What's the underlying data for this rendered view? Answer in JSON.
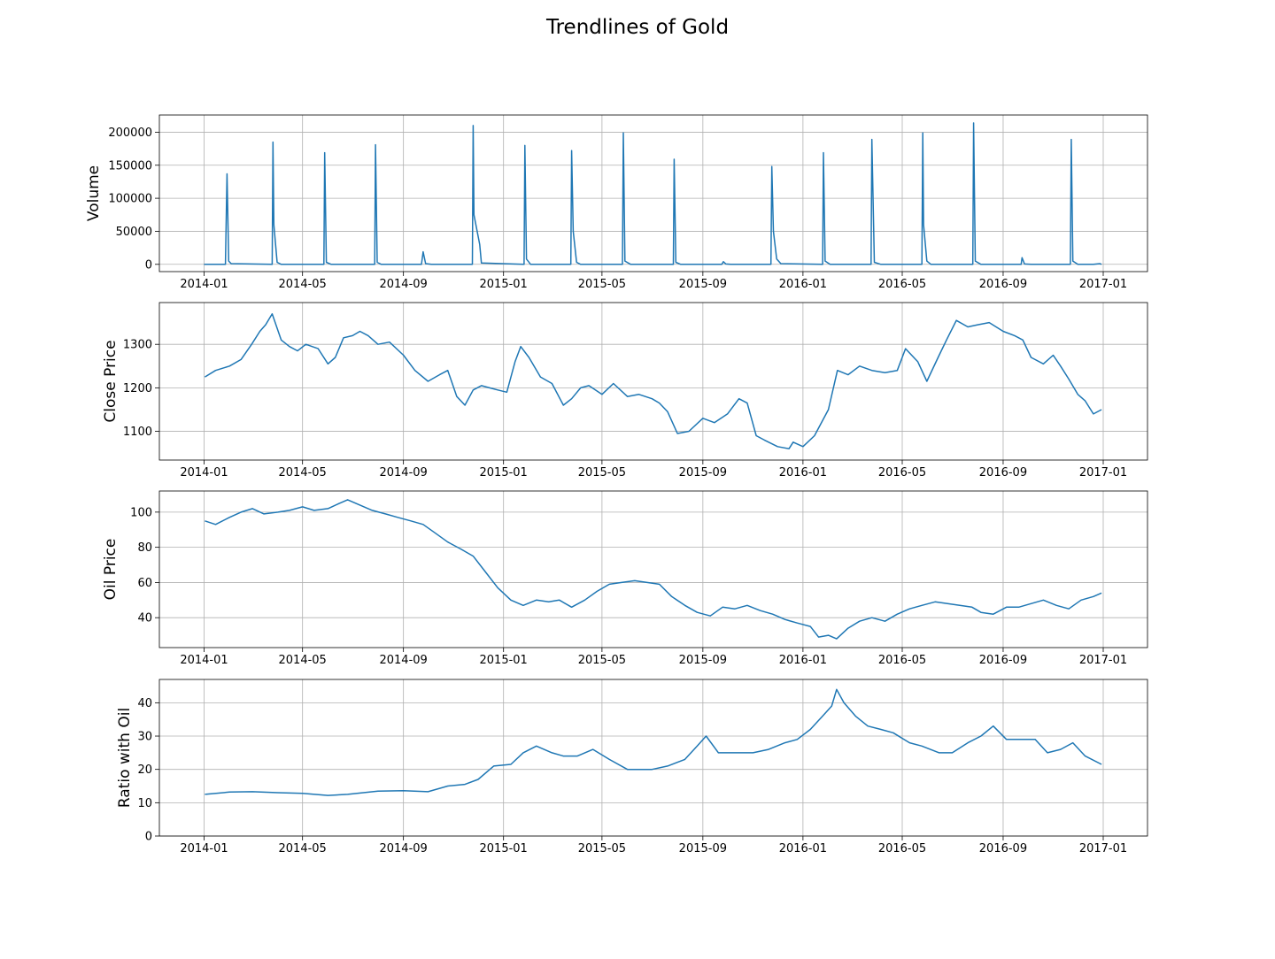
{
  "title": "Trendlines of Gold",
  "colors": {
    "line": "#1f77b4",
    "grid": "#b0b0b0",
    "axes": "#000000"
  },
  "chart_data": [
    {
      "type": "line",
      "ylabel": "Volume",
      "xlabel": "",
      "grid": true,
      "x_ticks": [
        "2014-01",
        "2014-05",
        "2014-09",
        "2015-01",
        "2015-05",
        "2015-09",
        "2016-01",
        "2016-05",
        "2016-09",
        "2017-01"
      ],
      "y_ticks": [
        0,
        50000,
        100000,
        150000,
        200000
      ],
      "ylim": [
        -11000,
        226000
      ],
      "series": [
        {
          "x": [
            "2014-01-01",
            "2014-01-27",
            "2014-01-29",
            "2014-01-31",
            "2014-02-03",
            "2014-03-25",
            "2014-03-26",
            "2014-03-27",
            "2014-03-31",
            "2014-04-05",
            "2014-05-27",
            "2014-05-28",
            "2014-05-30",
            "2014-06-05",
            "2014-07-28",
            "2014-07-29",
            "2014-07-31",
            "2014-08-05",
            "2014-09-23",
            "2014-09-25",
            "2014-09-28",
            "2014-10-05",
            "2014-11-24",
            "2014-11-25",
            "2014-11-26",
            "2014-12-03",
            "2014-12-05",
            "2015-01-26",
            "2015-01-27",
            "2015-01-29",
            "2015-02-03",
            "2015-03-24",
            "2015-03-25",
            "2015-03-27",
            "2015-03-31",
            "2015-04-05",
            "2015-05-26",
            "2015-05-27",
            "2015-05-29",
            "2015-06-05",
            "2015-07-27",
            "2015-07-28",
            "2015-07-30",
            "2015-08-05",
            "2015-09-24",
            "2015-09-26",
            "2015-09-29",
            "2015-10-05",
            "2015-11-23",
            "2015-11-24",
            "2015-11-26",
            "2015-11-30",
            "2015-12-05",
            "2016-01-25",
            "2016-01-26",
            "2016-01-28",
            "2016-02-03",
            "2016-03-24",
            "2016-03-25",
            "2016-03-28",
            "2016-04-05",
            "2016-05-25",
            "2016-05-26",
            "2016-05-27",
            "2016-05-31",
            "2016-06-05",
            "2016-07-26",
            "2016-07-27",
            "2016-07-29",
            "2016-08-05",
            "2016-09-23",
            "2016-09-24",
            "2016-09-27",
            "2016-10-05",
            "2016-11-22",
            "2016-11-23",
            "2016-11-25",
            "2016-12-01",
            "2016-12-20",
            "2016-12-28",
            "2016-12-30"
          ],
          "values": [
            0,
            0,
            137000,
            5000,
            1000,
            0,
            185000,
            60000,
            3000,
            0,
            0,
            169000,
            3000,
            0,
            0,
            181000,
            3000,
            0,
            0,
            19000,
            1000,
            0,
            0,
            210000,
            75000,
            30000,
            2000,
            0,
            180000,
            8000,
            0,
            0,
            172000,
            50000,
            3000,
            0,
            0,
            199000,
            5000,
            0,
            0,
            159000,
            3000,
            0,
            0,
            4000,
            500,
            0,
            0,
            148000,
            50000,
            8000,
            1000,
            0,
            169000,
            5000,
            0,
            0,
            189000,
            3000,
            0,
            0,
            199000,
            60000,
            5000,
            0,
            0,
            214000,
            5000,
            0,
            0,
            10000,
            500,
            0,
            0,
            189000,
            5000,
            0,
            0,
            1000,
            0
          ]
        }
      ]
    },
    {
      "type": "line",
      "ylabel": "Close Price",
      "xlabel": "",
      "grid": true,
      "x_ticks": [
        "2014-01",
        "2014-05",
        "2014-09",
        "2015-01",
        "2015-05",
        "2015-09",
        "2016-01",
        "2016-05",
        "2016-09",
        "2017-01"
      ],
      "y_ticks": [
        1100,
        1200,
        1300
      ],
      "ylim": [
        1034,
        1396
      ],
      "series": [
        {
          "x": [
            "2014-01-02",
            "2014-01-15",
            "2014-02-01",
            "2014-02-15",
            "2014-02-28",
            "2014-03-10",
            "2014-03-17",
            "2014-03-25",
            "2014-04-05",
            "2014-04-15",
            "2014-04-25",
            "2014-05-05",
            "2014-05-20",
            "2014-06-01",
            "2014-06-10",
            "2014-06-20",
            "2014-07-01",
            "2014-07-10",
            "2014-07-20",
            "2014-08-01",
            "2014-08-15",
            "2014-09-01",
            "2014-09-15",
            "2014-10-01",
            "2014-10-15",
            "2014-10-25",
            "2014-11-05",
            "2014-11-15",
            "2014-11-25",
            "2014-12-05",
            "2014-12-15",
            "2014-12-25",
            "2015-01-05",
            "2015-01-15",
            "2015-01-22",
            "2015-02-01",
            "2015-02-15",
            "2015-03-01",
            "2015-03-15",
            "2015-03-25",
            "2015-04-05",
            "2015-04-15",
            "2015-05-01",
            "2015-05-15",
            "2015-06-01",
            "2015-06-15",
            "2015-07-01",
            "2015-07-10",
            "2015-07-20",
            "2015-08-01",
            "2015-08-15",
            "2015-09-01",
            "2015-09-15",
            "2015-10-01",
            "2015-10-15",
            "2015-10-25",
            "2015-11-05",
            "2015-11-15",
            "2015-12-01",
            "2015-12-15",
            "2015-12-20",
            "2016-01-01",
            "2016-01-15",
            "2016-02-01",
            "2016-02-12",
            "2016-02-25",
            "2016-03-10",
            "2016-03-25",
            "2016-04-10",
            "2016-04-25",
            "2016-05-05",
            "2016-05-20",
            "2016-05-31",
            "2016-06-15",
            "2016-06-24",
            "2016-07-06",
            "2016-07-20",
            "2016-08-01",
            "2016-08-15",
            "2016-09-01",
            "2016-09-15",
            "2016-09-25",
            "2016-10-05",
            "2016-10-20",
            "2016-11-01",
            "2016-11-10",
            "2016-11-20",
            "2016-12-01",
            "2016-12-10",
            "2016-12-20",
            "2016-12-30"
          ],
          "values": [
            1225,
            1240,
            1250,
            1265,
            1300,
            1330,
            1345,
            1370,
            1310,
            1295,
            1285,
            1300,
            1290,
            1255,
            1270,
            1315,
            1320,
            1330,
            1320,
            1300,
            1305,
            1275,
            1240,
            1215,
            1230,
            1240,
            1180,
            1160,
            1195,
            1205,
            1200,
            1195,
            1190,
            1260,
            1295,
            1270,
            1225,
            1210,
            1160,
            1175,
            1200,
            1205,
            1185,
            1210,
            1180,
            1185,
            1175,
            1165,
            1145,
            1095,
            1100,
            1130,
            1120,
            1140,
            1175,
            1165,
            1090,
            1080,
            1065,
            1060,
            1075,
            1065,
            1090,
            1150,
            1240,
            1230,
            1250,
            1240,
            1235,
            1240,
            1290,
            1260,
            1215,
            1275,
            1310,
            1355,
            1340,
            1345,
            1350,
            1330,
            1320,
            1310,
            1270,
            1255,
            1275,
            1250,
            1220,
            1185,
            1170,
            1140,
            1150
          ]
        }
      ]
    },
    {
      "type": "line",
      "ylabel": "Oil Price",
      "xlabel": "",
      "grid": true,
      "x_ticks": [
        "2014-01",
        "2014-05",
        "2014-09",
        "2015-01",
        "2015-05",
        "2015-09",
        "2016-01",
        "2016-05",
        "2016-09",
        "2017-01"
      ],
      "y_ticks": [
        40,
        60,
        80,
        100
      ],
      "ylim": [
        23,
        112
      ],
      "series": [
        {
          "x": [
            "2014-01-02",
            "2014-01-15",
            "2014-02-01",
            "2014-02-15",
            "2014-03-01",
            "2014-03-15",
            "2014-04-01",
            "2014-04-15",
            "2014-05-01",
            "2014-05-15",
            "2014-06-01",
            "2014-06-15",
            "2014-06-25",
            "2014-07-10",
            "2014-07-25",
            "2014-08-10",
            "2014-08-25",
            "2014-09-10",
            "2014-09-25",
            "2014-10-10",
            "2014-10-25",
            "2014-11-10",
            "2014-11-25",
            "2014-12-10",
            "2014-12-25",
            "2015-01-10",
            "2015-01-25",
            "2015-02-10",
            "2015-02-25",
            "2015-03-10",
            "2015-03-25",
            "2015-04-10",
            "2015-04-25",
            "2015-05-10",
            "2015-05-25",
            "2015-06-10",
            "2015-06-25",
            "2015-07-10",
            "2015-07-25",
            "2015-08-10",
            "2015-08-25",
            "2015-09-10",
            "2015-09-25",
            "2015-10-10",
            "2015-10-25",
            "2015-11-10",
            "2015-11-25",
            "2015-12-10",
            "2015-12-25",
            "2016-01-10",
            "2016-01-20",
            "2016-02-01",
            "2016-02-11",
            "2016-02-25",
            "2016-03-10",
            "2016-03-25",
            "2016-04-10",
            "2016-04-25",
            "2016-05-10",
            "2016-05-25",
            "2016-06-10",
            "2016-06-25",
            "2016-07-10",
            "2016-07-25",
            "2016-08-05",
            "2016-08-20",
            "2016-09-05",
            "2016-09-20",
            "2016-10-05",
            "2016-10-20",
            "2016-11-05",
            "2016-11-20",
            "2016-12-05",
            "2016-12-20",
            "2016-12-30"
          ],
          "values": [
            95,
            93,
            97,
            100,
            102,
            99,
            100,
            101,
            103,
            101,
            102,
            105,
            107,
            104,
            101,
            99,
            97,
            95,
            93,
            88,
            83,
            79,
            75,
            66,
            57,
            50,
            47,
            50,
            49,
            50,
            46,
            50,
            55,
            59,
            60,
            61,
            60,
            59,
            52,
            47,
            43,
            41,
            46,
            45,
            47,
            44,
            42,
            39,
            37,
            35,
            29,
            30,
            28,
            34,
            38,
            40,
            38,
            42,
            45,
            47,
            49,
            48,
            47,
            46,
            43,
            42,
            46,
            46,
            48,
            50,
            47,
            45,
            50,
            52,
            54
          ]
        }
      ]
    },
    {
      "type": "line",
      "ylabel": "Ratio with Oil",
      "xlabel": "",
      "grid": true,
      "x_ticks": [
        "2014-01",
        "2014-05",
        "2014-09",
        "2015-01",
        "2015-05",
        "2015-09",
        "2016-01",
        "2016-05",
        "2016-09",
        "2017-01"
      ],
      "y_ticks": [
        0,
        10,
        20,
        30,
        40
      ],
      "ylim": [
        0,
        47
      ],
      "series": [
        {
          "x": [
            "2014-01-02",
            "2014-02-01",
            "2014-03-01",
            "2014-04-01",
            "2014-05-01",
            "2014-06-01",
            "2014-06-25",
            "2014-08-01",
            "2014-09-01",
            "2014-10-01",
            "2014-10-25",
            "2014-11-15",
            "2014-12-01",
            "2014-12-20",
            "2015-01-10",
            "2015-01-25",
            "2015-02-10",
            "2015-03-01",
            "2015-03-15",
            "2015-04-01",
            "2015-04-20",
            "2015-05-10",
            "2015-06-01",
            "2015-07-01",
            "2015-07-20",
            "2015-08-10",
            "2015-08-25",
            "2015-09-05",
            "2015-09-20",
            "2015-10-10",
            "2015-11-01",
            "2015-11-20",
            "2015-12-10",
            "2015-12-25",
            "2016-01-10",
            "2016-01-25",
            "2016-02-05",
            "2016-02-11",
            "2016-02-20",
            "2016-03-05",
            "2016-03-20",
            "2016-04-05",
            "2016-04-20",
            "2016-05-10",
            "2016-05-25",
            "2016-06-15",
            "2016-07-01",
            "2016-07-20",
            "2016-08-05",
            "2016-08-20",
            "2016-09-05",
            "2016-09-25",
            "2016-10-10",
            "2016-10-25",
            "2016-11-10",
            "2016-11-25",
            "2016-12-10",
            "2016-12-30"
          ],
          "values": [
            12.5,
            13.2,
            13.3,
            13.0,
            12.8,
            12.2,
            12.5,
            13.5,
            13.6,
            13.3,
            15.0,
            15.5,
            17,
            21,
            21.5,
            25,
            27,
            25,
            24,
            24,
            26,
            23,
            20,
            20,
            21,
            23,
            27,
            30,
            25,
            25,
            25,
            26,
            28,
            29,
            32,
            36,
            39,
            44,
            40,
            36,
            33,
            32,
            31,
            28,
            27,
            25,
            25,
            28,
            30,
            33,
            29,
            29,
            29,
            25,
            26,
            28,
            24,
            21.5
          ]
        }
      ]
    }
  ]
}
